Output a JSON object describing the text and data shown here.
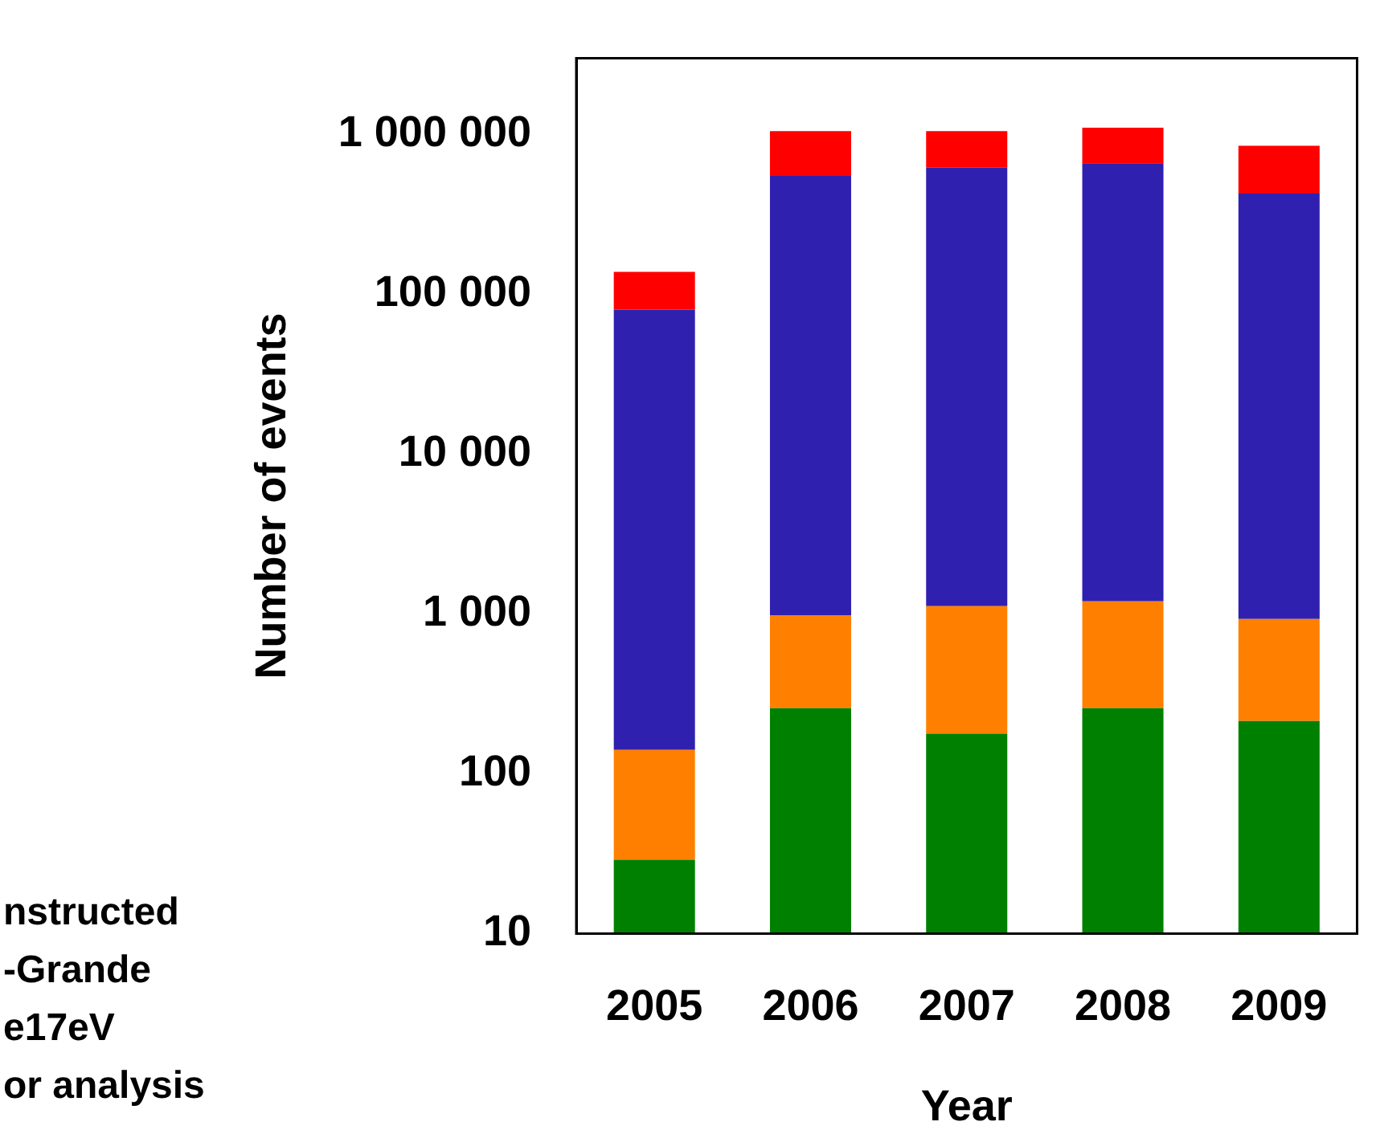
{
  "chart_data": {
    "type": "bar",
    "stacked": true,
    "log": "y",
    "xlabel": "Year",
    "ylabel": "Number of events",
    "categories": [
      "2005",
      "2006",
      "2007",
      "2008",
      "2009"
    ],
    "series": [
      {
        "color": "#008000",
        "values": [
          29,
          257,
          178,
          257,
          214
        ]
      },
      {
        "color": "#ff8000",
        "values": [
          112,
          720,
          940,
          940,
          716
        ]
      },
      {
        "color": "#3020b0",
        "values": [
          80000,
          549000,
          619000,
          659000,
          426000
        ]
      },
      {
        "color": "#ff0000",
        "values": [
          58000,
          500000,
          430000,
          440000,
          423000
        ]
      }
    ],
    "ylim": [
      10,
      3000000
    ],
    "yticks": [
      10,
      100,
      {
        "value": 1000,
        "label": "1 000"
      },
      {
        "value": 10000,
        "label": "10 000"
      },
      {
        "value": 100000,
        "label": "100 000"
      },
      {
        "value": 1000000,
        "label": "1 000 000"
      }
    ],
    "grid": false,
    "annotations": [
      "nstructed",
      "-Grande",
      "e17eV",
      "or analysis"
    ]
  }
}
